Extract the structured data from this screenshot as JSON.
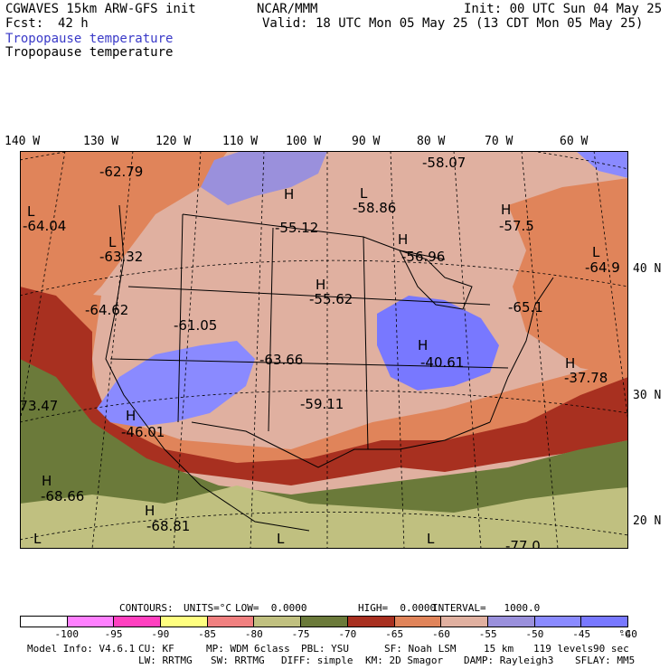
{
  "header": {
    "model": "CGWAVES 15km ARW-GFS init",
    "center": "NCAR/MMM",
    "init": "Init: 00 UTC Sun 04 May 25",
    "fcst_label": "Fcst:",
    "fcst_value": "42 h",
    "valid": "Valid: 18 UTC Mon 05 May 25 (13 CDT Mon 05 May 25)",
    "field_title_1": "Tropopause temperature",
    "field_title_2": "Tropopause temperature"
  },
  "map": {
    "lon_labels": [
      "140 W",
      "130 W",
      "120 W",
      "110 W",
      "100 W",
      "90 W",
      "80 W",
      "70 W",
      "60 W"
    ],
    "lat_labels": [
      "40 N",
      "30 N",
      "20 N"
    ],
    "colors": {
      "m100": "#ffffff",
      "m95": "#ff80ff",
      "m90": "#ff40c0",
      "m85": "#ffff80",
      "m80": "#f08080",
      "m75": "#c0c080",
      "m70": "#6b7a3a",
      "m65": "#a83020",
      "m60": "#e0845a",
      "m55": "#e0b0a0",
      "m50": "#9a90dc",
      "m45": "#8a8aff",
      "m40": "#7878ff",
      "land_line": "#000000"
    },
    "annotations": [
      {
        "text": "-62.79"
      },
      {
        "text": "-58.07"
      },
      {
        "text": "L"
      },
      {
        "text": "-64.04"
      },
      {
        "text": "H"
      },
      {
        "text": "-55.12"
      },
      {
        "text": "L"
      },
      {
        "text": "-58.86"
      },
      {
        "text": "H"
      },
      {
        "text": "-57.5"
      },
      {
        "text": "L"
      },
      {
        "text": "-63.32"
      },
      {
        "text": "H"
      },
      {
        "text": "-56.96"
      },
      {
        "text": "L"
      },
      {
        "text": "-64.9"
      },
      {
        "text": "H"
      },
      {
        "text": "-55.62"
      },
      {
        "text": "-64.62"
      },
      {
        "text": "-65.1"
      },
      {
        "text": "-61.05"
      },
      {
        "text": "H"
      },
      {
        "text": "-40.61"
      },
      {
        "text": "-63.66"
      },
      {
        "text": "H"
      },
      {
        "text": "-37.78"
      },
      {
        "text": "-73.47"
      },
      {
        "text": "-59.11"
      },
      {
        "text": "H"
      },
      {
        "text": "-46.01"
      },
      {
        "text": "H"
      },
      {
        "text": "-68.66"
      },
      {
        "text": "H"
      },
      {
        "text": "-68.81"
      },
      {
        "text": "L"
      },
      {
        "text": "L"
      },
      {
        "text": "L"
      },
      {
        "text": "-77.0"
      }
    ]
  },
  "contour_info": {
    "contours": "CONTOURS:",
    "units": "UNITS=°C",
    "low": "LOW=  0.0000",
    "high": "HIGH=  0.0000",
    "interval": "INTERVAL=   1000.0"
  },
  "legend": {
    "ticks": [
      "-100",
      "-95",
      "-90",
      "-85",
      "-80",
      "-75",
      "-70",
      "-65",
      "-60",
      "-55",
      "-50",
      "-45",
      "-40",
      "°C"
    ]
  },
  "footer": {
    "line1_model": "Model Info: V4.6.1",
    "line1_cu": "CU: KF",
    "line1_mp": "MP: WDM 6class",
    "line1_pbl": "PBL: YSU",
    "line1_sf": "SF: Noah LSM",
    "line1_res": "15 km",
    "line1_levels": "119 levels",
    "line1_sec": "90 sec",
    "line2_lw": "LW: RRTMG",
    "line2_sw": "SW: RRTMG",
    "line2_diff": "DIFF: simple",
    "line2_km": "KM: 2D Smagor",
    "line2_damp": "DAMP: Rayleigh3",
    "line2_sflay": "SFLAY: MM5"
  }
}
